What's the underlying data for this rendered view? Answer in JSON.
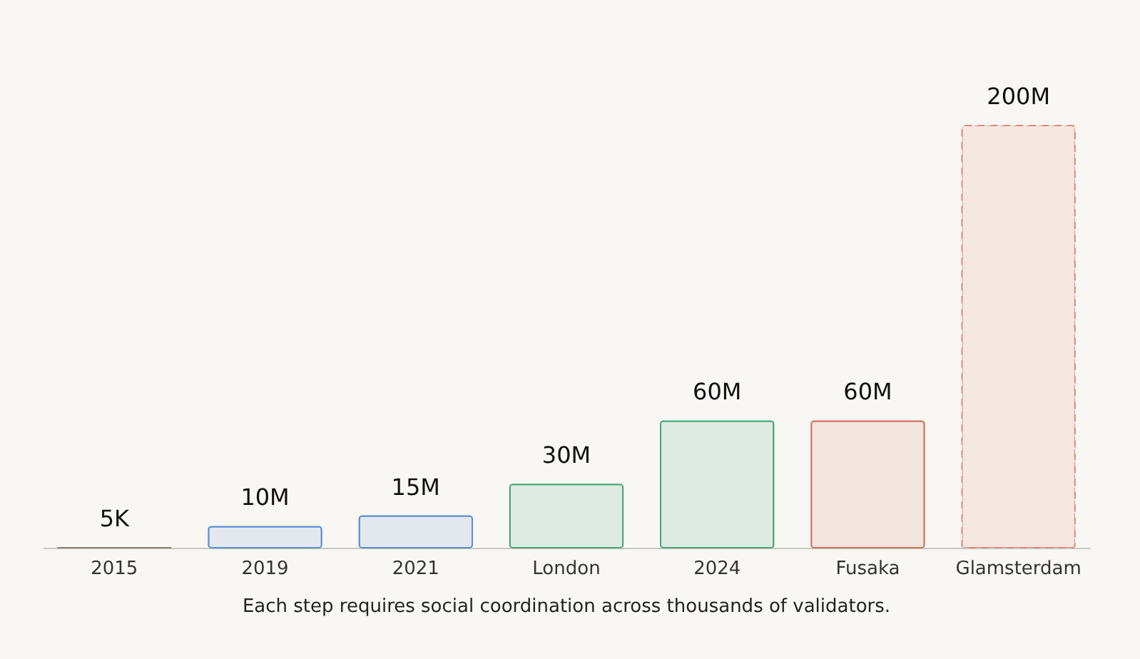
{
  "chart_data": {
    "type": "bar",
    "categories": [
      "2015",
      "2019",
      "2021",
      "London",
      "2024",
      "Fusaka",
      "Glamsterdam"
    ],
    "values": [
      5000,
      10000000,
      15000000,
      30000000,
      60000000,
      60000000,
      200000000
    ],
    "value_labels": [
      "5K",
      "10M",
      "15M",
      "30M",
      "60M",
      "60M",
      "200M"
    ],
    "colors": [
      "#8a8578",
      "#5b8fd0",
      "#5b8fd0",
      "#4aa57a",
      "#4aa57a",
      "#d0735a",
      "#e08a7a"
    ],
    "line_style": [
      "solid",
      "solid",
      "solid",
      "solid",
      "solid",
      "solid",
      "dashed"
    ],
    "annotations": [
      "Each step requires social coordination across thousands of validators."
    ],
    "grid": false
  }
}
